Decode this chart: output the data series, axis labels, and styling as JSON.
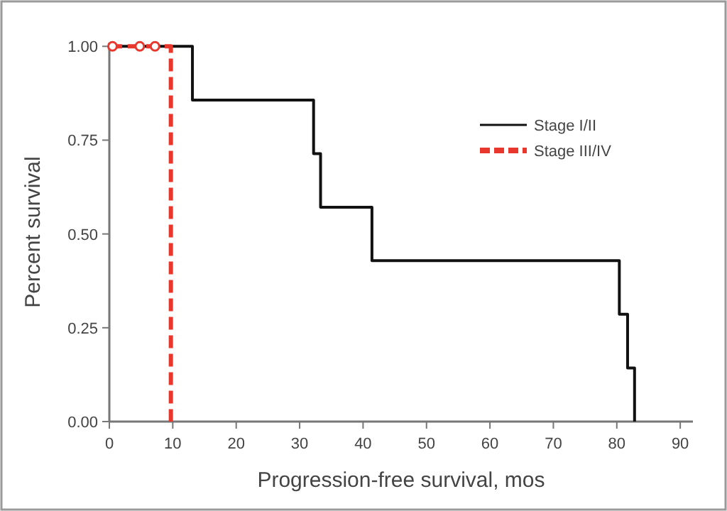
{
  "chart_data": {
    "type": "step",
    "xlabel": "Progression-free survival, mos",
    "ylabel": "Percent survival",
    "xlim": [
      0,
      92
    ],
    "xticks": [
      0,
      10,
      20,
      30,
      40,
      50,
      60,
      70,
      80,
      90
    ],
    "ylim": [
      0,
      1.01
    ],
    "yticks": [
      {
        "value": 0,
        "label": "0.00"
      },
      {
        "value": 0.25,
        "label": "0.25"
      },
      {
        "value": 0.5,
        "label": "0.50"
      },
      {
        "value": 0.75,
        "label": "0.75"
      },
      {
        "value": 1,
        "label": "1.00"
      }
    ],
    "legend": "right",
    "grid": false,
    "series": [
      {
        "name": "Stage I/II",
        "color": "#111111",
        "line_style": "solid",
        "x": [
          0,
          13.1,
          32.2,
          33.3,
          41.4,
          80.4,
          81.7,
          82.8
        ],
        "values": [
          1,
          0.857,
          0.714,
          0.571,
          0.429,
          0.286,
          0.143,
          0
        ]
      },
      {
        "name": "Stage III/IV",
        "color": "#e8382e",
        "line_style": "dashed",
        "x": [
          0,
          9.7
        ],
        "values": [
          1,
          0
        ]
      },
      {
        "type": "scatter",
        "color": "#e8382e",
        "marker": "circle",
        "x": [
          0.5,
          4.8,
          7.2
        ],
        "values": [
          1,
          1,
          1
        ]
      }
    ]
  }
}
